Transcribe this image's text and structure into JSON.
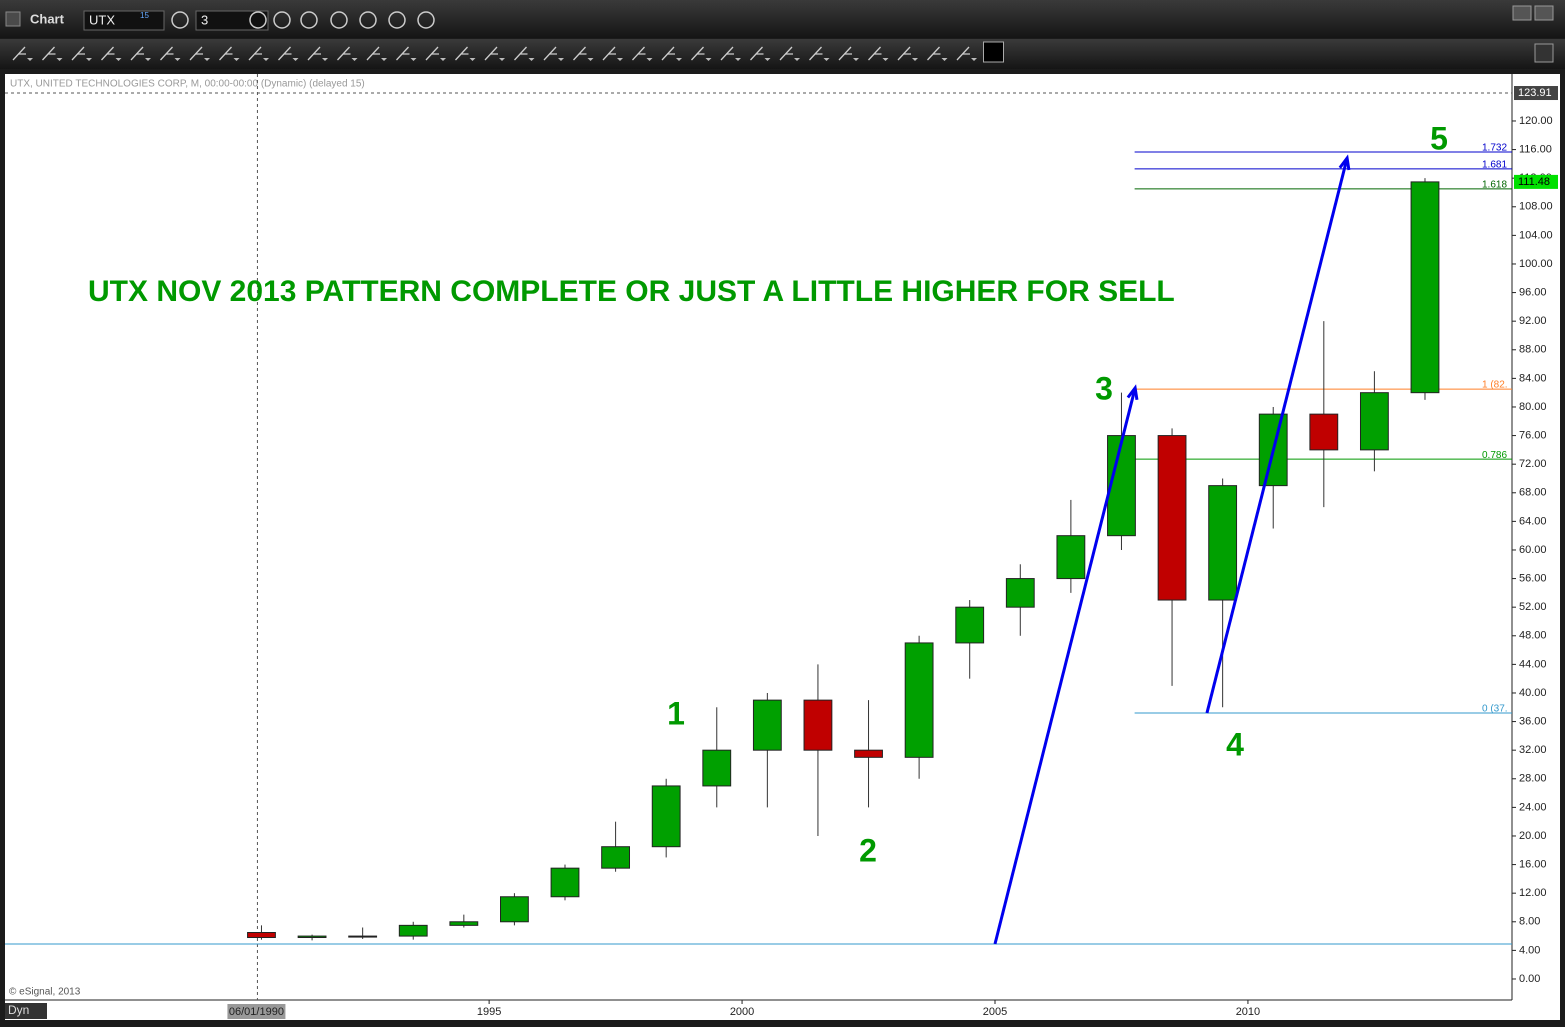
{
  "app": {
    "window_title": "Chart",
    "symbol": "UTX",
    "symbol_badge": "15",
    "interval": "3",
    "status": "Dyn"
  },
  "chart_data": {
    "type": "candlestick",
    "title": "UTX NOV 2013 PATTERN COMPLETE OR JUST A LITTLE HIGHER FOR SELL",
    "header": "UTX, UNITED TECHNOLOGIES CORP, M, 00:00-00:00 (Dynamic) (delayed 15)",
    "copyright": "© eSignal, 2013",
    "x": [
      1990.5,
      1991.5,
      1992.5,
      1993.5,
      1994.5,
      1995.5,
      1996.5,
      1997.5,
      1998.5,
      1999.5,
      2000.5,
      2001.5,
      2002.5,
      2003.5,
      2004.5,
      2005.5,
      2006.5,
      2007.5,
      2008.5,
      2009.5,
      2010.5,
      2011.5,
      2012.5,
      2013.5
    ],
    "open": [
      6.5,
      5.8,
      6.0,
      6.0,
      7.5,
      8.0,
      11.5,
      15.5,
      18.5,
      27,
      32,
      39,
      32,
      31,
      47,
      52,
      56,
      62,
      76,
      53,
      69,
      79,
      74,
      82
    ],
    "high": [
      7.5,
      6.2,
      7.2,
      8.0,
      9.0,
      12.0,
      16.0,
      22.0,
      28,
      38,
      40,
      44,
      39,
      48,
      53,
      58,
      67,
      82,
      77,
      70,
      80,
      92,
      85,
      112
    ],
    "low": [
      5.5,
      5.4,
      5.6,
      5.5,
      7.2,
      7.5,
      11.0,
      15.0,
      17,
      24,
      24,
      20,
      24,
      28,
      42,
      48,
      54,
      60,
      41,
      38,
      63,
      66,
      71,
      81
    ],
    "close": [
      5.8,
      6.0,
      6.0,
      7.5,
      8.0,
      11.5,
      15.5,
      18.5,
      27,
      32,
      39,
      32,
      31,
      47,
      52,
      56,
      62,
      76,
      53,
      69,
      79,
      74,
      82,
      111.48
    ],
    "up_color": "#00a000",
    "down_color": "#c00000",
    "xlim": [
      1985.43,
      2015.22
    ],
    "xticks": [
      1995,
      2000,
      2005,
      2010
    ],
    "cursor_date": {
      "value": 1990.42,
      "label": "06/01/1990"
    },
    "ylim": [
      -2.94,
      126.57
    ],
    "yticks": [
      {
        "value": 0,
        "label": "0.00"
      },
      {
        "value": 4,
        "label": "4.00"
      },
      {
        "value": 8,
        "label": "8.00"
      },
      {
        "value": 12,
        "label": "12.00"
      },
      {
        "value": 16,
        "label": "16.00"
      },
      {
        "value": 20,
        "label": "20.00"
      },
      {
        "value": 24,
        "label": "24.00"
      },
      {
        "value": 28,
        "label": "28.00"
      },
      {
        "value": 32,
        "label": "32.00"
      },
      {
        "value": 36,
        "label": "36.00"
      },
      {
        "value": 40,
        "label": "40.00"
      },
      {
        "value": 44,
        "label": "44.00"
      },
      {
        "value": 48,
        "label": "48.00"
      },
      {
        "value": 52,
        "label": "52.00"
      },
      {
        "value": 56,
        "label": "56.00"
      },
      {
        "value": 60,
        "label": "60.00"
      },
      {
        "value": 64,
        "label": "64.00"
      },
      {
        "value": 68,
        "label": "68.00"
      },
      {
        "value": 72,
        "label": "72.00"
      },
      {
        "value": 76,
        "label": "76.00"
      },
      {
        "value": 80,
        "label": "80.00"
      },
      {
        "value": 84,
        "label": "84.00"
      },
      {
        "value": 88,
        "label": "88.00"
      },
      {
        "value": 92,
        "label": "92.00"
      },
      {
        "value": 96,
        "label": "96.00"
      },
      {
        "value": 100,
        "label": "100.00"
      },
      {
        "value": 104,
        "label": "104.00"
      },
      {
        "value": 108,
        "label": "108.00"
      },
      {
        "value": 112,
        "label": "112.00"
      },
      {
        "value": 116,
        "label": "116.00"
      },
      {
        "value": 120,
        "label": "120.00"
      }
    ],
    "price_markers": [
      {
        "value": 123.91,
        "label": "123.91",
        "color": "#444444",
        "text_color": "#ffffff"
      },
      {
        "value": 111.48,
        "label": "111.48",
        "color": "#00e000",
        "text_color": "#000000"
      }
    ],
    "fib_start": 2007.76,
    "fib_levels": [
      {
        "label": "1.732",
        "value": 115.66,
        "color": "#0000cc"
      },
      {
        "label": "1.681",
        "value": 113.3,
        "color": "#0000cc"
      },
      {
        "label": "1.618",
        "value": 110.5,
        "color": "#006600"
      },
      {
        "label": "1 (82.",
        "value": 82.5,
        "color": "#ff7f27"
      },
      {
        "label": "0.786",
        "value": 72.7,
        "color": "#009900"
      },
      {
        "label": "0 (37.",
        "value": 37.2,
        "color": "#3399cc"
      }
    ],
    "support": {
      "value": 4.9,
      "color": "#3399cc"
    },
    "arrow_color": "#0000ee",
    "arrows": [
      {
        "x": [
          2005.0,
          2007.77
        ],
        "y": [
          4.9,
          82.66
        ]
      },
      {
        "x": [
          2009.19,
          2011.96
        ],
        "y": [
          37.2,
          114.8
        ]
      }
    ],
    "wave_labels": [
      "1",
      "2",
      "3",
      "4",
      "5"
    ],
    "label_color": "#009900"
  }
}
